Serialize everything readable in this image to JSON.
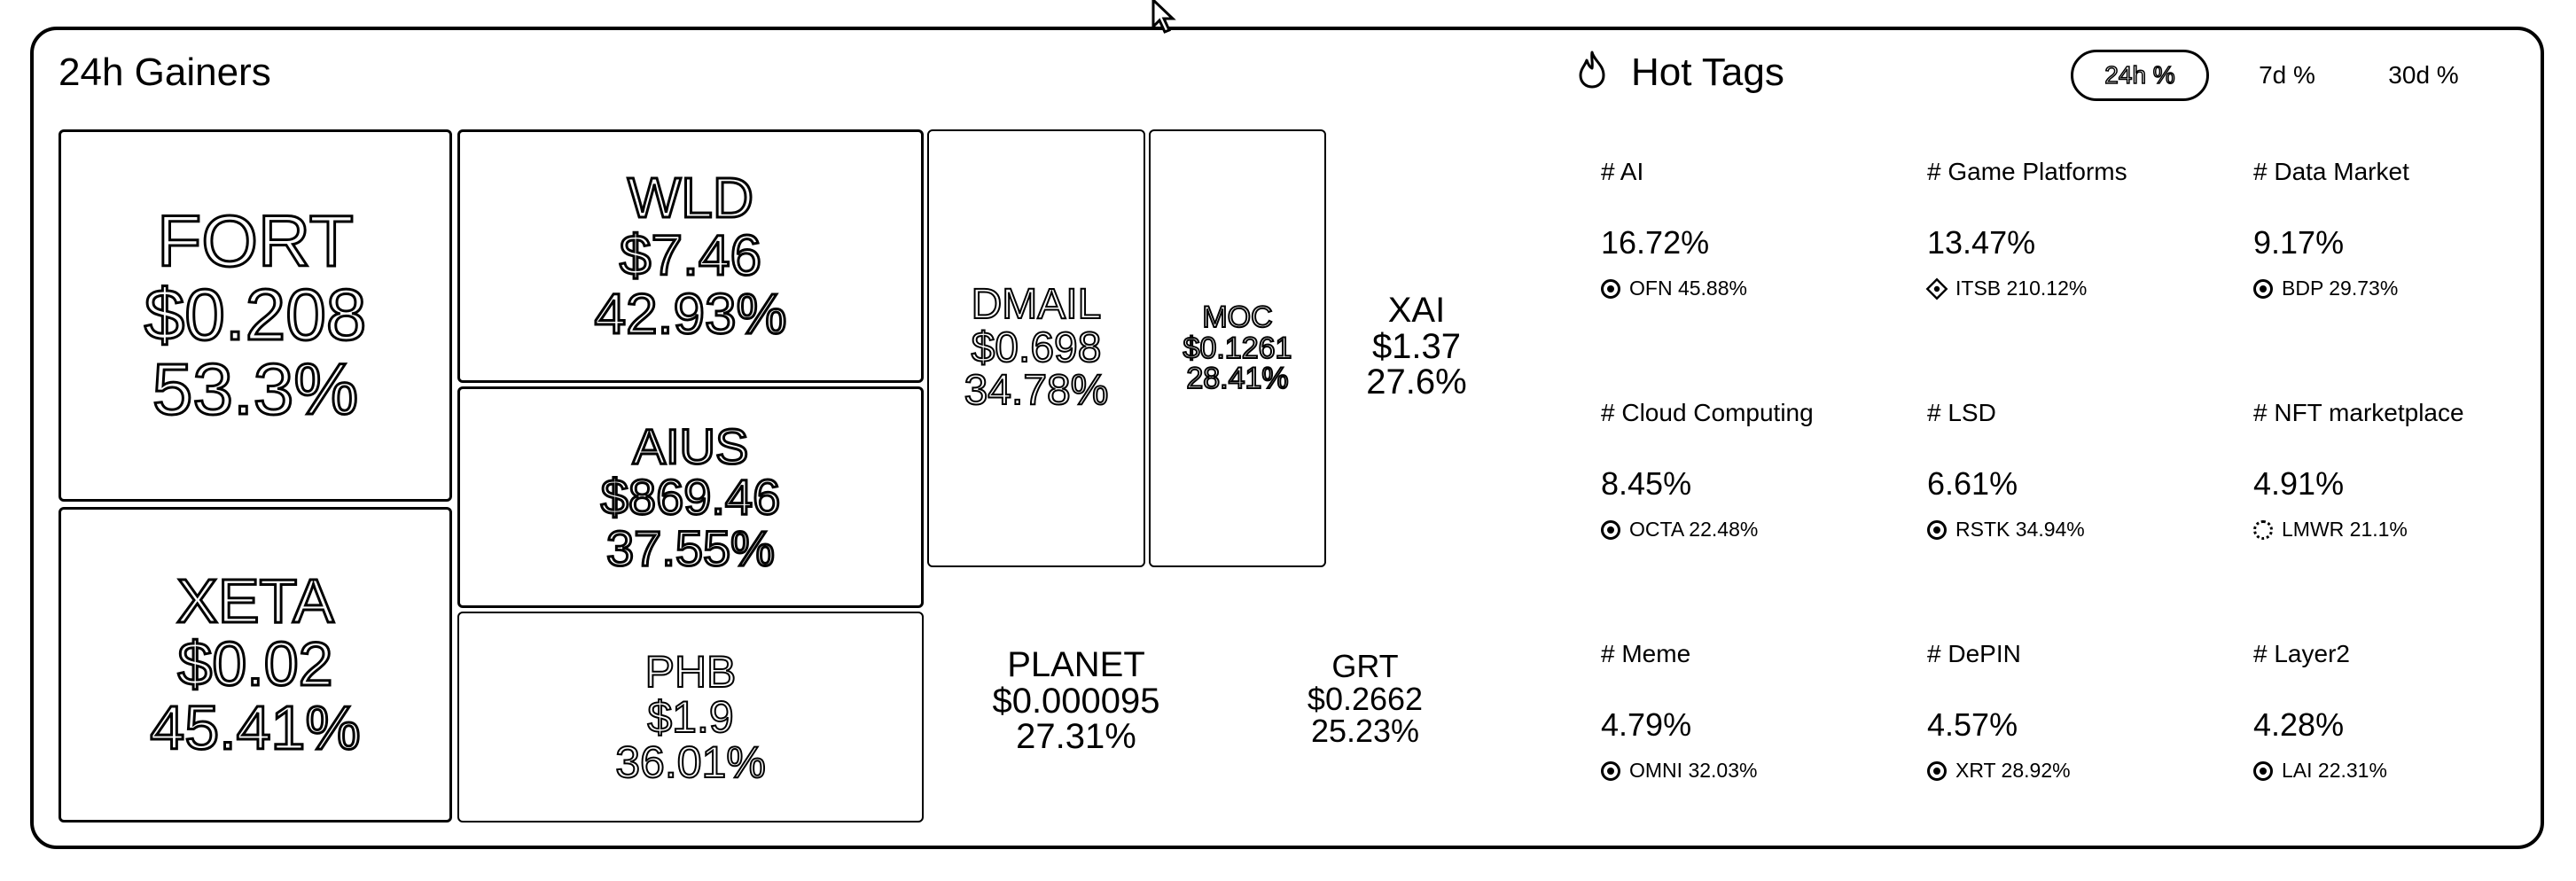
{
  "gainers": {
    "title": "24h Gainers",
    "tiles": [
      {
        "symbol": "FORT",
        "price": "$0.208",
        "change": "53.3%"
      },
      {
        "symbol": "XETA",
        "price": "$0.02",
        "change": "45.41%"
      },
      {
        "symbol": "WLD",
        "price": "$7.46",
        "change": "42.93%"
      },
      {
        "symbol": "AIUS",
        "price": "$869.46",
        "change": "37.55%"
      },
      {
        "symbol": "PHB",
        "price": "$1.9",
        "change": "36.01%"
      },
      {
        "symbol": "DMAIL",
        "price": "$0.698",
        "change": "34.78%"
      },
      {
        "symbol": "MOC",
        "price": "$0.1261",
        "change": "28.41%"
      },
      {
        "symbol": "XAI",
        "price": "$1.37",
        "change": "27.6%"
      },
      {
        "symbol": "PLANET",
        "price": "$0.000095",
        "change": "27.31%"
      },
      {
        "symbol": "GRT",
        "price": "$0.2662",
        "change": "25.23%"
      }
    ]
  },
  "hot_tags": {
    "title": "Hot Tags",
    "icon": "flame-icon",
    "tabs": [
      {
        "label": "24h %",
        "active": true
      },
      {
        "label": "7d %",
        "active": false
      },
      {
        "label": "30d %",
        "active": false
      }
    ],
    "tags": [
      {
        "name": "# AI",
        "change": "16.72%",
        "coin": "OFN 45.88%"
      },
      {
        "name": "# Game Platforms",
        "change": "13.47%",
        "coin": "ITSB 210.12%"
      },
      {
        "name": "# Data Market",
        "change": "9.17%",
        "coin": "BDP 29.73%"
      },
      {
        "name": "# Cloud Computing",
        "change": "8.45%",
        "coin": "OCTA 22.48%"
      },
      {
        "name": "# LSD",
        "change": "6.61%",
        "coin": "RSTK 34.94%"
      },
      {
        "name": "# NFT marketplace",
        "change": "4.91%",
        "coin": "LMWR 21.1%"
      },
      {
        "name": "# Meme",
        "change": "4.79%",
        "coin": "OMNI 32.03%"
      },
      {
        "name": "# DePIN",
        "change": "4.57%",
        "coin": "XRT 28.92%"
      },
      {
        "name": "# Layer2",
        "change": "4.28%",
        "coin": "LAI 22.31%"
      }
    ]
  }
}
